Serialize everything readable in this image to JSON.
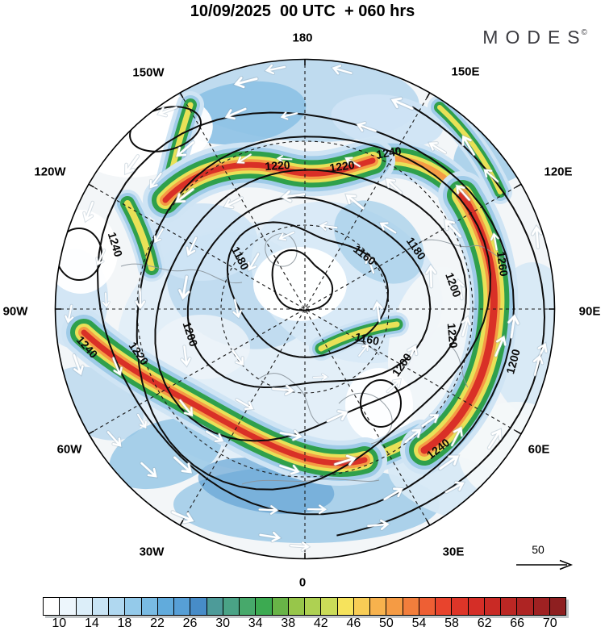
{
  "title": "10/09/2025  00 UTC  + 060 hrs",
  "logo": {
    "text": "MODES",
    "mark": "©"
  },
  "map": {
    "lon_labels": [
      "180",
      "150E",
      "120E",
      "90E",
      "60E",
      "30E",
      "0",
      "30W",
      "60W",
      "90W",
      "120W",
      "150W"
    ],
    "contour_labels": [
      "1220",
      "1220",
      "1240",
      "1240",
      "1180",
      "1160",
      "1180",
      "1200",
      "1260",
      "1220",
      "1200",
      "1200",
      "1220",
      "1240",
      "1200",
      "1240",
      "1160"
    ],
    "contour_levels": [
      1160,
      1180,
      1200,
      1220,
      1240,
      1260
    ]
  },
  "reference_vector": {
    "label": "50"
  },
  "colorbar": {
    "ticks": [
      "10",
      "14",
      "18",
      "22",
      "26",
      "30",
      "34",
      "38",
      "42",
      "46",
      "50",
      "54",
      "58",
      "62",
      "66",
      "70"
    ],
    "range": [
      8,
      72
    ],
    "cell_span": 2,
    "colors": [
      "#ffffff",
      "#edf6fc",
      "#dceef9",
      "#c8e4f5",
      "#b0d8f0",
      "#94caea",
      "#79bbe3",
      "#61abdc",
      "#579fd6",
      "#478cc8",
      "#4d9b99",
      "#4aa386",
      "#47a96b",
      "#3caa51",
      "#68b447",
      "#97c64a",
      "#aed152",
      "#cbdc58",
      "#f6e35c",
      "#f8cd55",
      "#f7b24d",
      "#f59b44",
      "#f27e3c",
      "#ee5f34",
      "#e8442d",
      "#de3528",
      "#d52e27",
      "#c92a25",
      "#bc2724",
      "#ae2423",
      "#9f2122",
      "#8e1f20"
    ]
  }
}
